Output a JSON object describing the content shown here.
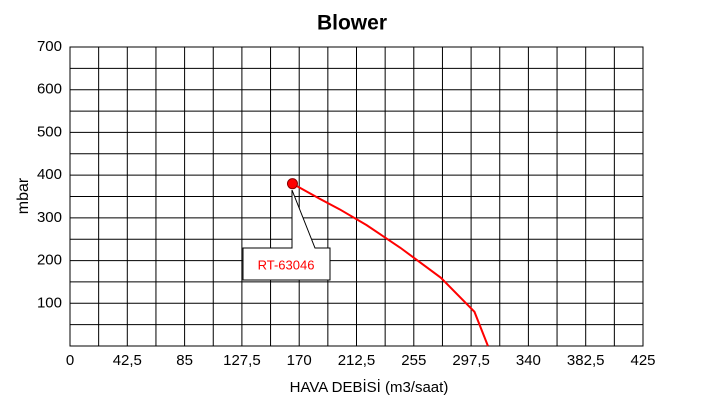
{
  "chart_data": {
    "type": "line",
    "title": "Blower",
    "xlabel": "HAVA DEBİSİ (m3/saat)",
    "ylabel": "mbar",
    "xlim": [
      0,
      425
    ],
    "ylim": [
      0,
      700
    ],
    "xticks": [
      0,
      {
        "value": 42.5,
        "label": "42,5"
      },
      85,
      {
        "value": 127.5,
        "label": "127,5"
      },
      170,
      {
        "value": 212.5,
        "label": "212,5"
      },
      255,
      {
        "value": 297.5,
        "label": "297,5"
      },
      340,
      {
        "value": 382.5,
        "label": "382,5"
      },
      425
    ],
    "yticks": [
      100,
      200,
      300,
      400,
      500,
      600,
      700
    ],
    "minor_xticks": [
      21.25,
      63.75,
      106.25,
      148.75,
      191.25,
      233.75,
      276.25,
      318.75,
      361.25,
      403.75
    ],
    "minor_yticks": [
      0,
      50,
      150,
      250,
      350,
      450,
      550,
      650
    ],
    "grid": true,
    "series": [
      {
        "name": "RT-63046",
        "color": "#ff0000",
        "x": [
          165,
          185,
          200,
          220,
          245,
          275,
          300,
          310
        ],
        "values": [
          380,
          345,
          320,
          283,
          230,
          160,
          80,
          0
        ]
      }
    ]
  }
}
